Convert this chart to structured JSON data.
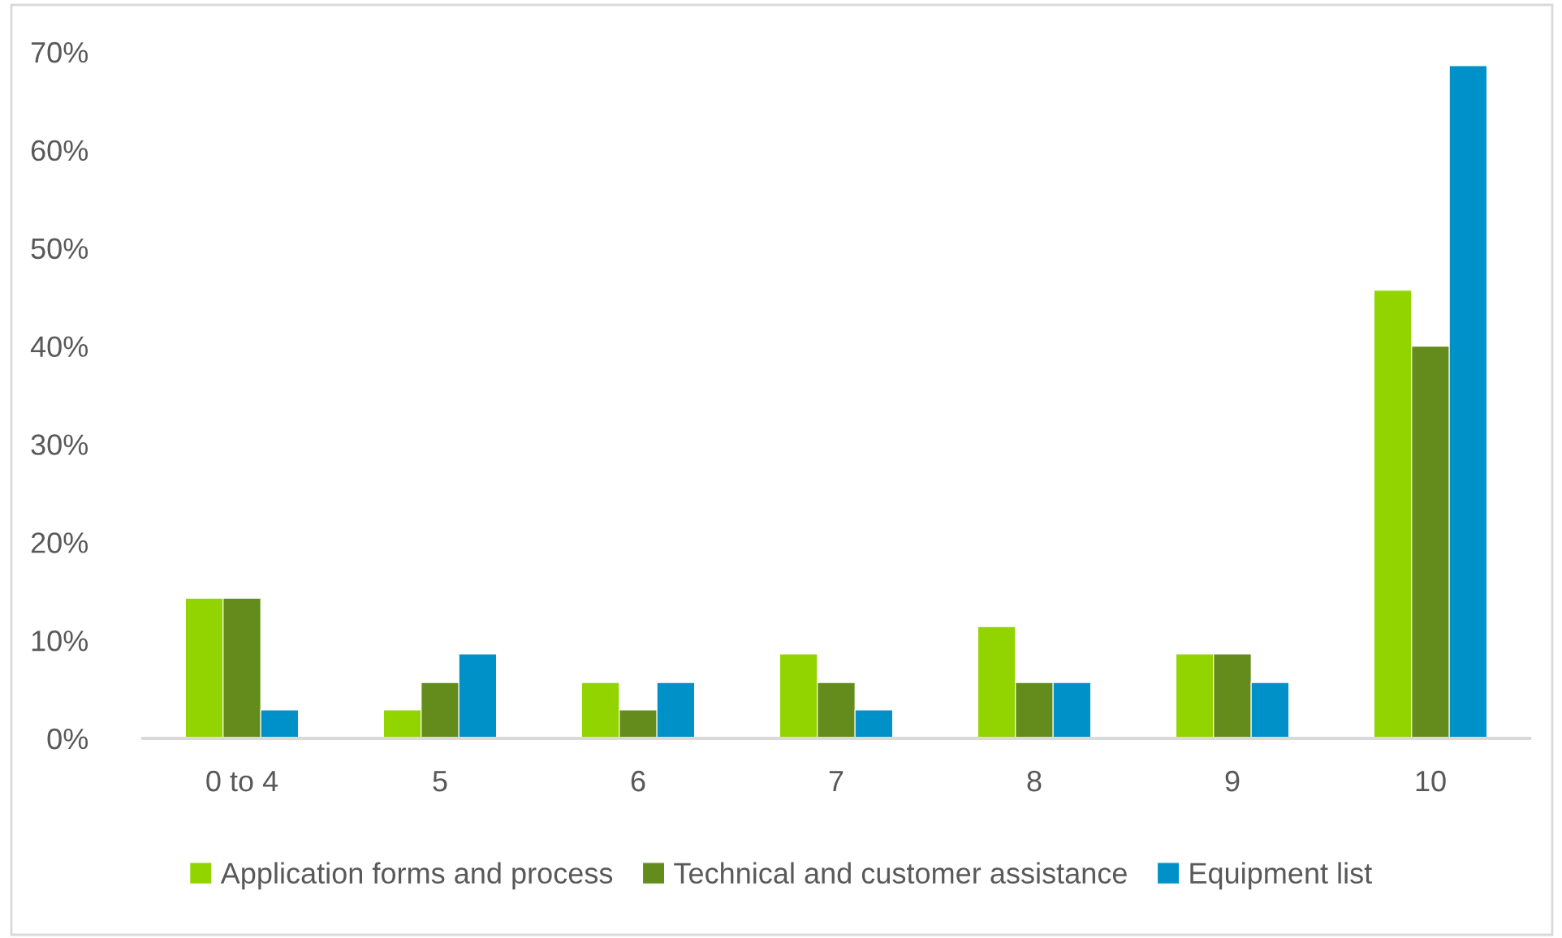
{
  "chart_data": {
    "type": "bar",
    "categories": [
      "0 to 4",
      "5",
      "6",
      "7",
      "8",
      "9",
      "10"
    ],
    "series": [
      {
        "name": "Application forms and process",
        "color": "#92d400",
        "values": [
          14.3,
          2.9,
          5.7,
          8.6,
          11.4,
          8.6,
          45.7
        ]
      },
      {
        "name": "Technical and customer assistance",
        "color": "#638c1c",
        "values": [
          14.3,
          5.7,
          2.9,
          5.7,
          5.7,
          8.6,
          40.0
        ]
      },
      {
        "name": "Equipment list",
        "color": "#0091c8",
        "values": [
          2.9,
          8.6,
          5.7,
          2.9,
          5.7,
          5.7,
          68.6
        ]
      }
    ],
    "ylim": [
      0,
      70
    ],
    "yticks": [
      {
        "value": 0,
        "label": "0%"
      },
      {
        "value": 10,
        "label": "10%"
      },
      {
        "value": 20,
        "label": "20%"
      },
      {
        "value": 30,
        "label": "30%"
      },
      {
        "value": 40,
        "label": "40%"
      },
      {
        "value": 50,
        "label": "50%"
      },
      {
        "value": 60,
        "label": "60%"
      },
      {
        "value": 70,
        "label": "70%"
      }
    ],
    "grid": false,
    "legend": "bottom"
  }
}
